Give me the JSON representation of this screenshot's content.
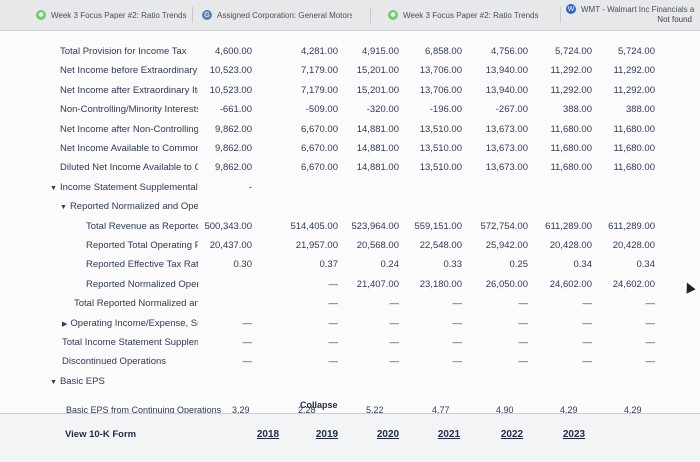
{
  "tabs": [
    {
      "label": "Week 3 Focus Paper #2: Ratio Trends",
      "icon": "gear-icon"
    },
    {
      "label": "Assigned Corporation: General Motors...",
      "icon": "doc-icon"
    },
    {
      "label": "Week 3 Focus Paper #2: Ratio Trends",
      "icon": "gear-icon"
    },
    {
      "label": "WMT - Walmart Inc Financials a",
      "icon": "walmart-icon"
    }
  ],
  "not_found": "Not found",
  "rows": [
    {
      "label": "Total Provision for Income Tax",
      "indent": 60,
      "values": [
        "4,600.00",
        "4,281.00",
        "4,915.00",
        "6,858.00",
        "4,756.00",
        "5,724.00",
        "5,724.00"
      ]
    },
    {
      "label": "Net Income before Extraordinary Items and ...",
      "indent": 60,
      "values": [
        "10,523.00",
        "7,179.00",
        "15,201.00",
        "13,706.00",
        "13,940.00",
        "11,292.00",
        "11,292.00"
      ]
    },
    {
      "label": "Net Income after Extraordinary Items and Di...",
      "indent": 60,
      "values": [
        "10,523.00",
        "7,179.00",
        "15,201.00",
        "13,706.00",
        "13,940.00",
        "11,292.00",
        "11,292.00"
      ]
    },
    {
      "label": "Non-Controlling/Minority Interests",
      "indent": 60,
      "values": [
        "-661.00",
        "-509.00",
        "-320.00",
        "-196.00",
        "-267.00",
        "388.00",
        "388.00"
      ]
    },
    {
      "label": "Net Income after Non-Controlling/Minority I...",
      "indent": 60,
      "values": [
        "9,862.00",
        "6,670.00",
        "14,881.00",
        "13,510.00",
        "13,673.00",
        "11,680.00",
        "11,680.00"
      ]
    },
    {
      "label": "Net Income Available to Common Stockholders",
      "indent": 60,
      "values": [
        "9,862.00",
        "6,670.00",
        "14,881.00",
        "13,510.00",
        "13,673.00",
        "11,680.00",
        "11,680.00"
      ]
    },
    {
      "label": "Diluted Net Income Available to Common St...",
      "indent": 60,
      "values": [
        "9,862.00",
        "6,670.00",
        "14,881.00",
        "13,510.00",
        "13,673.00",
        "11,680.00",
        "11,680.00"
      ]
    },
    {
      "label": "Income Statement Supplemental Section",
      "indent": 50,
      "toggle": "▼",
      "values": [
        "-",
        "",
        "",
        "",
        "",
        "",
        ""
      ]
    },
    {
      "label": "Reported Normalized and Operating Inco...",
      "indent": 60,
      "toggle": "▼",
      "values": [
        "",
        "",
        "",
        "",
        "",
        "",
        ""
      ]
    },
    {
      "label": "Total Revenue as Reported, Suppleme...",
      "indent": 86,
      "values": [
        "500,343.00",
        "514,405.00",
        "523,964.00",
        "559,151.00",
        "572,754.00",
        "611,289.00",
        "611,289.00"
      ]
    },
    {
      "label": "Reported Total Operating Profit/Loss",
      "indent": 86,
      "values": [
        "20,437.00",
        "21,957.00",
        "20,568.00",
        "22,548.00",
        "25,942.00",
        "20,428.00",
        "20,428.00"
      ]
    },
    {
      "label": "Reported Effective Tax Rate",
      "indent": 86,
      "values": [
        "0.30",
        "0.37",
        "0.24",
        "0.33",
        "0.25",
        "0.34",
        "0.34"
      ]
    },
    {
      "label": "Reported Normalized Operating Profit",
      "indent": 86,
      "values": [
        "",
        "—",
        "21,407.00",
        "23,180.00",
        "26,050.00",
        "24,602.00",
        "24,602.00"
      ]
    },
    {
      "label": "Total Reported Normalized and Operating...",
      "indent": 74,
      "values": [
        "",
        "—",
        "—",
        "—",
        "—",
        "—",
        "—"
      ]
    },
    {
      "label": "Operating Income/Expense, Supplementa...",
      "indent": 62,
      "toggle": "▶",
      "values": [
        "—",
        "—",
        "—",
        "—",
        "—",
        "—",
        "—"
      ]
    },
    {
      "label": "Total Income Statement Supplemental Section",
      "indent": 62,
      "values": [
        "—",
        "—",
        "—",
        "—",
        "—",
        "—",
        "—"
      ]
    },
    {
      "label": "Discontinued Operations",
      "indent": 62,
      "values": [
        "—",
        "—",
        "—",
        "—",
        "—",
        "—",
        "—"
      ]
    },
    {
      "label": "Basic EPS",
      "indent": 50,
      "toggle": "▼",
      "values": [
        "",
        "",
        "",
        "",
        "",
        "",
        ""
      ]
    }
  ],
  "partial_row": {
    "label": "Basic EPS from Continuing Operations",
    "values": [
      "3.29",
      "2.28",
      "5.22",
      "4.77",
      "4.90",
      "4.29",
      "4.29"
    ]
  },
  "collapse_label": "Collapse",
  "footer": {
    "label": "View 10-K Form",
    "years": [
      "2018",
      "2019",
      "2020",
      "2021",
      "2022",
      "2023"
    ]
  }
}
